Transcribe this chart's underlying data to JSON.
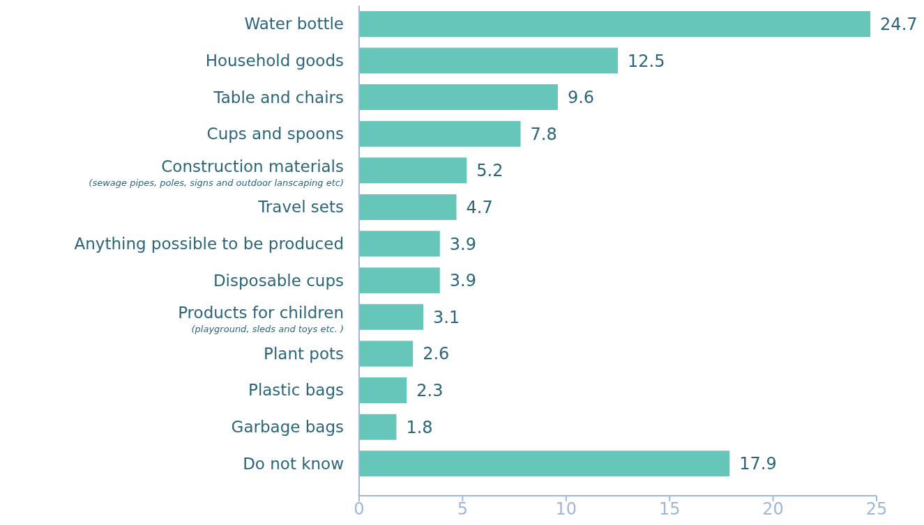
{
  "chart_data": {
    "type": "bar",
    "orientation": "horizontal",
    "categories": [
      "Water bottle",
      "Household goods",
      "Table and chairs",
      "Cups and spoons",
      "Construction materials\n(sewage pipes, poles, signs and outdoor lanscaping etc)",
      "Travel sets",
      "Anything possible to be produced",
      "Disposable cups",
      "Products for children\n(playground, sleds and toys etc. )",
      "Plant pots",
      "Plastic bags",
      "Garbage bags",
      "Do not know"
    ],
    "values": [
      24.7,
      12.5,
      9.6,
      7.8,
      5.2,
      4.7,
      3.9,
      3.9,
      3.1,
      2.6,
      2.3,
      1.8,
      17.9
    ],
    "color": "#66c6b9",
    "xlim": [
      0,
      25
    ],
    "xticks": [
      0,
      5,
      10,
      15,
      20,
      25
    ],
    "data_labels": true,
    "grid": false,
    "legend": false
  }
}
